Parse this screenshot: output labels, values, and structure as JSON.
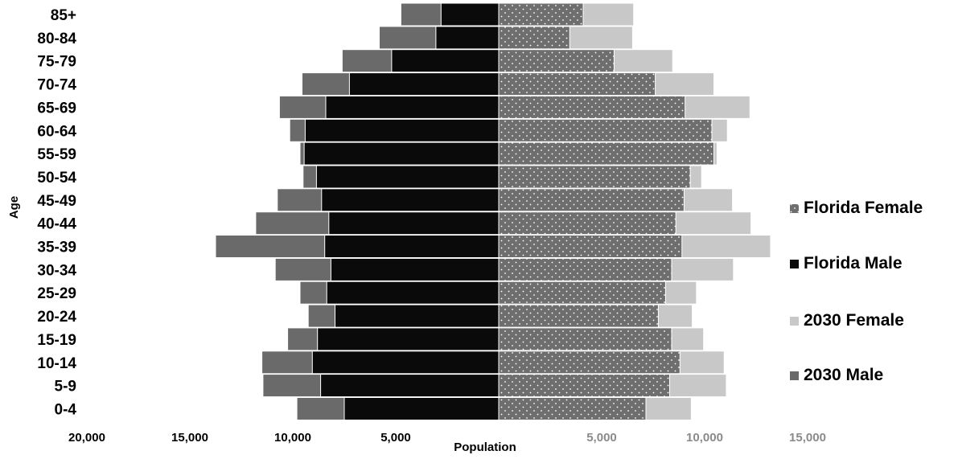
{
  "chart_data": {
    "type": "bar",
    "orientation": "horizontal",
    "layout": "population-pyramid",
    "xlabel": "Population",
    "ylabel": "Age",
    "categories": [
      "85+",
      "80-84",
      "75-79",
      "70-74",
      "65-69",
      "60-64",
      "55-59",
      "50-54",
      "45-49",
      "40-44",
      "35-39",
      "30-34",
      "25-29",
      "20-24",
      "15-19",
      "10-14",
      "5-9",
      "0-4"
    ],
    "xticks": {
      "male_side": [
        "20,000",
        "15,000",
        "10,000",
        "5,000"
      ],
      "female_side": [
        "5,000",
        "10,000",
        "15,000"
      ]
    },
    "x_range": [
      -20000,
      15000
    ],
    "series": [
      {
        "name": "Florida Female",
        "side": "right",
        "color": "#6e6e6e",
        "pattern": "dots",
        "values": [
          4100,
          3450,
          5600,
          7600,
          9050,
          10350,
          10450,
          9300,
          9000,
          8600,
          8900,
          8400,
          8100,
          7750,
          8400,
          8800,
          8300,
          7150
        ]
      },
      {
        "name": "Florida Male",
        "side": "left",
        "color": "#0a0a0a",
        "values": [
          2800,
          3050,
          5200,
          7250,
          8400,
          9400,
          9450,
          8850,
          8600,
          8250,
          8450,
          8150,
          8350,
          7950,
          8800,
          9050,
          8650,
          7500
        ]
      },
      {
        "name": "2030 Female",
        "side": "right",
        "color": "#c8c8c8",
        "values": [
          6550,
          6500,
          8450,
          10450,
          12200,
          11100,
          10600,
          9850,
          11350,
          12250,
          13200,
          11400,
          9600,
          9400,
          9950,
          10950,
          11050,
          9350
        ]
      },
      {
        "name": "2030 Male",
        "side": "left",
        "color": "#6a6a6a",
        "values": [
          4750,
          5800,
          7600,
          9550,
          10650,
          10150,
          9650,
          9500,
          10750,
          11800,
          13750,
          10850,
          9650,
          9250,
          10250,
          11500,
          11450,
          9800
        ]
      }
    ],
    "legend": {
      "position": "right",
      "entries": [
        "Florida Female",
        "Florida Male",
        "2030 Female",
        "2030 Male"
      ]
    },
    "grid": false
  }
}
